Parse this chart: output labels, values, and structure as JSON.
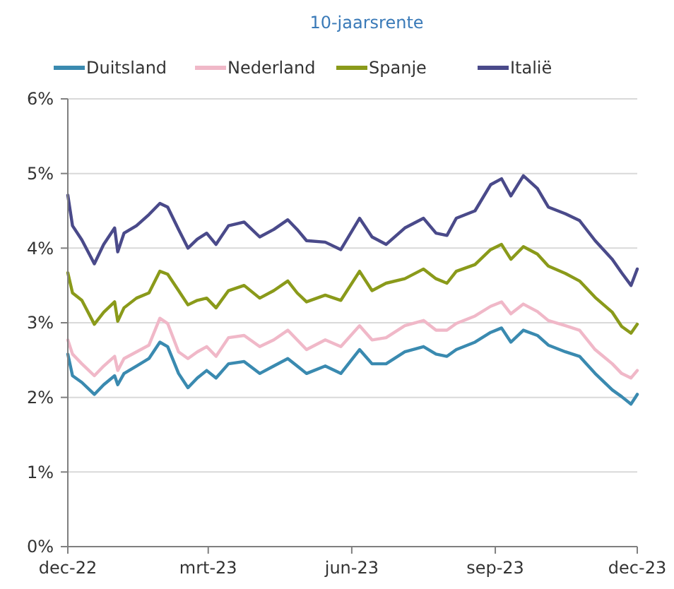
{
  "chart_data": {
    "type": "line",
    "title": "10-jaarsrente",
    "x": [
      "2022-12-01",
      "2022-12-04",
      "2022-12-10",
      "2022-12-18",
      "2022-12-24",
      "2022-12-31",
      "2023-01-02",
      "2023-01-06",
      "2023-01-14",
      "2023-01-22",
      "2023-01-29",
      "2023-02-03",
      "2023-02-10",
      "2023-02-16",
      "2023-02-22",
      "2023-02-28",
      "2023-03-06",
      "2023-03-14",
      "2023-03-24",
      "2023-04-03",
      "2023-04-12",
      "2023-04-21",
      "2023-04-27",
      "2023-05-03",
      "2023-05-15",
      "2023-05-25",
      "2023-06-06",
      "2023-06-14",
      "2023-06-23",
      "2023-07-05",
      "2023-07-17",
      "2023-07-25",
      "2023-08-01",
      "2023-08-07",
      "2023-08-19",
      "2023-08-29",
      "2023-09-05",
      "2023-09-11",
      "2023-09-19",
      "2023-09-28",
      "2023-10-05",
      "2023-10-16",
      "2023-10-25",
      "2023-11-04",
      "2023-11-15",
      "2023-11-21",
      "2023-11-27",
      "2023-12-01"
    ],
    "series": [
      {
        "name": "Duitsland",
        "color": "#3a8ab0",
        "values": [
          2.58,
          2.29,
          2.2,
          2.04,
          2.17,
          2.29,
          2.17,
          2.32,
          2.42,
          2.52,
          2.74,
          2.68,
          2.32,
          2.13,
          2.26,
          2.36,
          2.26,
          2.45,
          2.48,
          2.32,
          2.42,
          2.52,
          2.42,
          2.32,
          2.42,
          2.32,
          2.64,
          2.45,
          2.45,
          2.61,
          2.68,
          2.58,
          2.55,
          2.64,
          2.74,
          2.87,
          2.93,
          2.74,
          2.9,
          2.83,
          2.7,
          2.61,
          2.55,
          2.32,
          2.1,
          2.01,
          1.91,
          2.04
        ]
      },
      {
        "name": "Nederland",
        "color": "#f0b8c8",
        "values": [
          2.77,
          2.58,
          2.45,
          2.29,
          2.42,
          2.55,
          2.36,
          2.52,
          2.61,
          2.7,
          3.06,
          2.99,
          2.61,
          2.52,
          2.61,
          2.68,
          2.55,
          2.8,
          2.83,
          2.68,
          2.77,
          2.9,
          2.77,
          2.64,
          2.77,
          2.68,
          2.96,
          2.77,
          2.8,
          2.96,
          3.03,
          2.9,
          2.9,
          2.99,
          3.09,
          3.22,
          3.28,
          3.12,
          3.25,
          3.15,
          3.03,
          2.96,
          2.9,
          2.64,
          2.45,
          2.32,
          2.26,
          2.36
        ]
      },
      {
        "name": "Spanje",
        "color": "#8a9a1a",
        "values": [
          3.67,
          3.4,
          3.3,
          2.98,
          3.14,
          3.28,
          3.02,
          3.2,
          3.33,
          3.4,
          3.69,
          3.65,
          3.43,
          3.24,
          3.3,
          3.33,
          3.2,
          3.43,
          3.5,
          3.33,
          3.43,
          3.56,
          3.4,
          3.28,
          3.37,
          3.3,
          3.69,
          3.43,
          3.53,
          3.59,
          3.72,
          3.59,
          3.53,
          3.69,
          3.78,
          3.98,
          4.05,
          3.85,
          4.02,
          3.92,
          3.76,
          3.66,
          3.56,
          3.34,
          3.14,
          2.95,
          2.86,
          2.98
        ]
      },
      {
        "name": "Italië",
        "color": "#4a4a8a",
        "values": [
          4.71,
          4.3,
          4.11,
          3.79,
          4.05,
          4.27,
          3.95,
          4.2,
          4.3,
          4.45,
          4.6,
          4.55,
          4.25,
          4.0,
          4.12,
          4.2,
          4.05,
          4.3,
          4.35,
          4.15,
          4.25,
          4.38,
          4.25,
          4.1,
          4.08,
          3.98,
          4.4,
          4.15,
          4.05,
          4.27,
          4.4,
          4.2,
          4.17,
          4.4,
          4.5,
          4.85,
          4.93,
          4.7,
          4.97,
          4.8,
          4.55,
          4.46,
          4.37,
          4.1,
          3.85,
          3.67,
          3.5,
          3.72
        ]
      }
    ],
    "xlim": [
      "2022-12-01",
      "2023-12-01"
    ],
    "xticks": [
      {
        "value": "2022-12-01",
        "label": "dec-22"
      },
      {
        "value": "2023-03-01",
        "label": "mrt-23"
      },
      {
        "value": "2023-06-01",
        "label": "jun-23"
      },
      {
        "value": "2023-09-01",
        "label": "sep-23"
      },
      {
        "value": "2023-12-01",
        "label": "dec-23"
      }
    ],
    "ylim": [
      0,
      6
    ],
    "yticks": [
      {
        "value": 0,
        "label": "0%"
      },
      {
        "value": 1,
        "label": "1%"
      },
      {
        "value": 2,
        "label": "2%"
      },
      {
        "value": 3,
        "label": "3%"
      },
      {
        "value": 4,
        "label": "4%"
      },
      {
        "value": 5,
        "label": "5%"
      },
      {
        "value": 6,
        "label": "6%"
      }
    ],
    "grid": "y",
    "legend": "top",
    "marker": "none",
    "line_style": "solid"
  }
}
